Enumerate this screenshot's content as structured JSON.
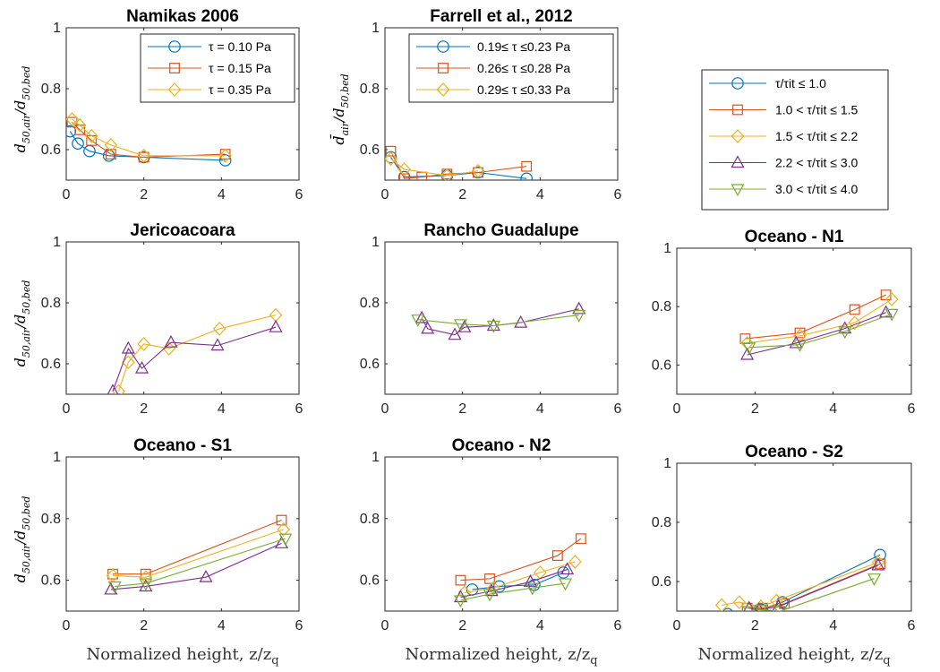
{
  "figure": {
    "colors": {
      "tau_0_10": "#0072BD",
      "tau_0_15": "#D95319",
      "tau_0_35": "#EDB120",
      "c1": "#0072BD",
      "c2": "#D95319",
      "c3": "#EDB120",
      "c4": "#7E2F8E",
      "c5": "#77AC30"
    },
    "legend_shared": {
      "entries": [
        {
          "label": "τ/τ_it ≤ 1.0",
          "marker": "circle",
          "color_key": "c1"
        },
        {
          "label": "1.0 < τ/τ_it ≤ 1.5",
          "marker": "square",
          "color_key": "c2"
        },
        {
          "label": "1.5 < τ/τ_it ≤ 2.2",
          "marker": "diamond",
          "color_key": "c3"
        },
        {
          "label": "2.2 < τ/τ_it ≤ 3.0",
          "marker": "triangle-up",
          "color_key": "c4"
        },
        {
          "label": "3.0 < τ/τ_it ≤ 4.0",
          "marker": "triangle-down",
          "color_key": "c5"
        }
      ]
    }
  },
  "chart_data": [
    {
      "type": "line",
      "title": "Namikas 2006",
      "ylabel": "d_{50,air}/d_{50,bed}",
      "xlabel": "",
      "xlim": [
        0,
        6
      ],
      "ylim": [
        0.5,
        1.0
      ],
      "xticks": [
        0,
        2,
        4,
        6
      ],
      "yticks": [
        0.6,
        0.8,
        1
      ],
      "xtick_labels": [
        "0",
        "2",
        "4",
        "6"
      ],
      "ytick_labels": [
        "0.6",
        "0.8",
        "1"
      ],
      "legend": {
        "location": "top-right"
      },
      "series": [
        {
          "name": "τ = 0.10 Pa",
          "marker": "circle",
          "color_key": "tau_0_10",
          "x": [
            0.1,
            0.3,
            0.6,
            1.1,
            2.0,
            4.1
          ],
          "y": [
            0.66,
            0.62,
            0.595,
            0.58,
            0.575,
            0.565
          ]
        },
        {
          "name": "τ = 0.15 Pa",
          "marker": "square",
          "color_key": "tau_0_15",
          "x": [
            0.15,
            0.35,
            0.65,
            1.15,
            2.0,
            4.1
          ],
          "y": [
            0.69,
            0.665,
            0.63,
            0.585,
            0.575,
            0.585
          ]
        },
        {
          "name": "τ = 0.35 Pa",
          "marker": "diamond",
          "color_key": "tau_0_35",
          "x": [
            0.15,
            0.35,
            0.65,
            1.15,
            2.0,
            4.1
          ],
          "y": [
            0.7,
            0.68,
            0.645,
            0.615,
            0.58,
            0.58
          ]
        }
      ]
    },
    {
      "type": "line",
      "title": "Farrell et al., 2012",
      "ylabel": "d̄_{air}/d_{50,bed}",
      "xlabel": "",
      "xlim": [
        0,
        6
      ],
      "ylim": [
        0.5,
        1.0
      ],
      "xticks": [
        0,
        2,
        4,
        6
      ],
      "yticks": [
        0.6,
        0.8,
        1
      ],
      "xtick_labels": [
        "0",
        "2",
        "4",
        "6"
      ],
      "ytick_labels": [
        "0.6",
        "0.8",
        "1"
      ],
      "legend": {
        "location": "top-right"
      },
      "series": [
        {
          "name": "0.19≤ τ ≤0.23 Pa",
          "marker": "circle",
          "color_key": "tau_0_10",
          "x": [
            0.15,
            0.5,
            1.6,
            2.4,
            3.65
          ],
          "y": [
            0.575,
            0.51,
            0.515,
            0.525,
            0.505
          ]
        },
        {
          "name": "0.26≤ τ ≤0.28 Pa",
          "marker": "square",
          "color_key": "tau_0_15",
          "x": [
            0.15,
            0.5,
            0.95,
            1.6,
            2.4,
            3.65
          ],
          "y": [
            0.595,
            0.505,
            0.51,
            0.52,
            0.525,
            0.545
          ]
        },
        {
          "name": "0.29≤ τ ≤0.33 Pa",
          "marker": "diamond",
          "color_key": "tau_0_35",
          "x": [
            0.15,
            0.5,
            1.6,
            2.4
          ],
          "y": [
            0.57,
            0.535,
            0.515,
            0.53
          ]
        }
      ]
    },
    {
      "type": "line",
      "title": "Jericoacoara",
      "ylabel": "d_{50,air}/d_{50,bed}",
      "xlabel": "",
      "xlim": [
        0,
        6
      ],
      "ylim": [
        0.5,
        1.0
      ],
      "xticks": [
        0,
        2,
        4,
        6
      ],
      "yticks": [
        0.6,
        0.8,
        1
      ],
      "xtick_labels": [
        "0",
        "2",
        "4",
        "6"
      ],
      "ytick_labels": [
        "0.6",
        "0.8",
        "1"
      ],
      "series": [
        {
          "marker": "diamond",
          "color_key": "c3",
          "x": [
            1.35,
            1.6,
            2.0,
            2.65,
            3.95,
            5.4
          ],
          "y": [
            0.51,
            0.605,
            0.665,
            0.65,
            0.715,
            0.76
          ]
        },
        {
          "marker": "triangle-up",
          "color_key": "c4",
          "x": [
            1.2,
            1.6,
            1.95,
            2.7,
            3.9,
            5.4
          ],
          "y": [
            0.51,
            0.65,
            0.585,
            0.67,
            0.66,
            0.72
          ]
        }
      ]
    },
    {
      "type": "line",
      "title": "Rancho Guadalupe",
      "ylabel": "",
      "xlabel": "",
      "xlim": [
        0,
        6
      ],
      "ylim": [
        0.5,
        1.0
      ],
      "xticks": [
        0,
        2,
        4,
        6
      ],
      "yticks": [
        0.6,
        0.8,
        1
      ],
      "xtick_labels": [
        "0",
        "2",
        "4",
        "6"
      ],
      "ytick_labels": [
        "0.6",
        "0.8",
        "1"
      ],
      "series": [
        {
          "marker": "triangle-up",
          "color_key": "c4",
          "x": [
            0.95,
            1.1,
            1.8,
            2.05,
            2.8,
            3.5,
            5.0
          ],
          "y": [
            0.75,
            0.715,
            0.695,
            0.72,
            0.725,
            0.735,
            0.78
          ]
        },
        {
          "marker": "triangle-down",
          "color_key": "c5",
          "x": [
            0.85,
            1.95,
            2.8,
            5.0
          ],
          "y": [
            0.745,
            0.73,
            0.725,
            0.76
          ]
        }
      ]
    },
    {
      "type": "line",
      "title": "Oceano - N1",
      "ylabel": "",
      "xlabel": "",
      "xlim": [
        0,
        6
      ],
      "ylim": [
        0.5,
        1.0
      ],
      "xticks": [
        0,
        2,
        4,
        6
      ],
      "yticks": [
        0.6,
        0.8,
        1
      ],
      "xtick_labels": [
        "0",
        "2",
        "4",
        "6"
      ],
      "ytick_labels": [
        "0.6",
        "0.8",
        "1"
      ],
      "series": [
        {
          "marker": "square",
          "color_key": "c2",
          "x": [
            1.75,
            3.15,
            4.55,
            5.35
          ],
          "y": [
            0.69,
            0.71,
            0.79,
            0.84
          ]
        },
        {
          "marker": "diamond",
          "color_key": "c3",
          "x": [
            1.8,
            3.15,
            4.55,
            5.5
          ],
          "y": [
            0.675,
            0.7,
            0.745,
            0.825
          ]
        },
        {
          "marker": "triangle-up",
          "color_key": "c4",
          "x": [
            1.8,
            3.05,
            4.3,
            5.35
          ],
          "y": [
            0.635,
            0.675,
            0.725,
            0.78
          ]
        },
        {
          "marker": "triangle-down",
          "color_key": "c5",
          "x": [
            1.85,
            3.15,
            4.3,
            5.5
          ],
          "y": [
            0.66,
            0.67,
            0.715,
            0.775
          ]
        }
      ]
    },
    {
      "type": "line",
      "title": "Oceano - S1",
      "ylabel": "d_{50,air}/d_{50,bed}",
      "xlabel": "Normalized height, z/z_q",
      "xlim": [
        0,
        6
      ],
      "ylim": [
        0.5,
        1.0
      ],
      "xticks": [
        0,
        2,
        4,
        6
      ],
      "yticks": [
        0.6,
        0.8,
        1
      ],
      "xtick_labels": [
        "0",
        "2",
        "4",
        "6"
      ],
      "ytick_labels": [
        "0.6",
        "0.8",
        "1"
      ],
      "series": [
        {
          "marker": "square",
          "color_key": "c2",
          "x": [
            1.2,
            2.05,
            5.55
          ],
          "y": [
            0.62,
            0.62,
            0.795
          ]
        },
        {
          "marker": "diamond",
          "color_key": "c3",
          "x": [
            1.2,
            2.05,
            5.6
          ],
          "y": [
            0.615,
            0.61,
            0.765
          ]
        },
        {
          "marker": "triangle-up",
          "color_key": "c4",
          "x": [
            1.15,
            2.05,
            3.6,
            5.55
          ],
          "y": [
            0.57,
            0.58,
            0.61,
            0.72
          ]
        },
        {
          "marker": "triangle-down",
          "color_key": "c5",
          "x": [
            1.25,
            2.05,
            5.65
          ],
          "y": [
            0.58,
            0.59,
            0.735
          ]
        }
      ]
    },
    {
      "type": "line",
      "title": "Oceano - N2",
      "ylabel": "",
      "xlabel": "Normalized height, z/z_q",
      "xlim": [
        0,
        6
      ],
      "ylim": [
        0.5,
        1.0
      ],
      "xticks": [
        0,
        2,
        4,
        6
      ],
      "yticks": [
        0.6,
        0.8,
        1
      ],
      "xtick_labels": [
        "0",
        "2",
        "4",
        "6"
      ],
      "ytick_labels": [
        "0.6",
        "0.8",
        "1"
      ],
      "series": [
        {
          "marker": "circle",
          "color_key": "c1",
          "x": [
            2.25,
            2.95,
            3.85,
            4.6
          ],
          "y": [
            0.57,
            0.58,
            0.585,
            0.625
          ]
        },
        {
          "marker": "square",
          "color_key": "c2",
          "x": [
            1.95,
            2.7,
            4.45,
            5.05
          ],
          "y": [
            0.6,
            0.605,
            0.68,
            0.735
          ]
        },
        {
          "marker": "diamond",
          "color_key": "c3",
          "x": [
            2.05,
            2.8,
            4.0,
            4.9
          ],
          "y": [
            0.56,
            0.575,
            0.625,
            0.66
          ]
        },
        {
          "marker": "triangle-up",
          "color_key": "c4",
          "x": [
            1.95,
            2.75,
            3.75,
            4.7
          ],
          "y": [
            0.545,
            0.565,
            0.595,
            0.635
          ]
        },
        {
          "marker": "triangle-down",
          "color_key": "c5",
          "x": [
            1.95,
            2.7,
            3.8,
            4.65
          ],
          "y": [
            0.535,
            0.555,
            0.575,
            0.59
          ]
        }
      ]
    },
    {
      "type": "line",
      "title": "Oceano - S2",
      "ylabel": "",
      "xlabel": "Normalized height, z/z_q",
      "xlim": [
        0,
        6
      ],
      "ylim": [
        0.5,
        1.0
      ],
      "xticks": [
        0,
        2,
        4,
        6
      ],
      "yticks": [
        0.6,
        0.8,
        1
      ],
      "xtick_labels": [
        "0",
        "2",
        "4",
        "6"
      ],
      "ytick_labels": [
        "0.6",
        "0.8",
        "1"
      ],
      "series": [
        {
          "marker": "circle",
          "color_key": "c1",
          "x": [
            1.3,
            2.15,
            2.7,
            5.2
          ],
          "y": [
            0.49,
            0.505,
            0.53,
            0.69
          ]
        },
        {
          "marker": "square",
          "color_key": "c2",
          "x": [
            1.8,
            2.2,
            2.75,
            5.2
          ],
          "y": [
            0.51,
            0.51,
            0.525,
            0.66
          ]
        },
        {
          "marker": "diamond",
          "color_key": "c3",
          "x": [
            1.15,
            1.6,
            2.15,
            2.55,
            5.15
          ],
          "y": [
            0.52,
            0.53,
            0.515,
            0.535,
            0.665
          ]
        },
        {
          "marker": "triangle-up",
          "color_key": "c4",
          "x": [
            1.85,
            2.1,
            2.6,
            5.15
          ],
          "y": [
            0.51,
            0.505,
            0.515,
            0.655
          ]
        },
        {
          "marker": "triangle-down",
          "color_key": "c5",
          "x": [
            1.85,
            2.15,
            2.65,
            5.05
          ],
          "y": [
            0.5,
            0.505,
            0.5,
            0.61
          ]
        }
      ]
    }
  ]
}
